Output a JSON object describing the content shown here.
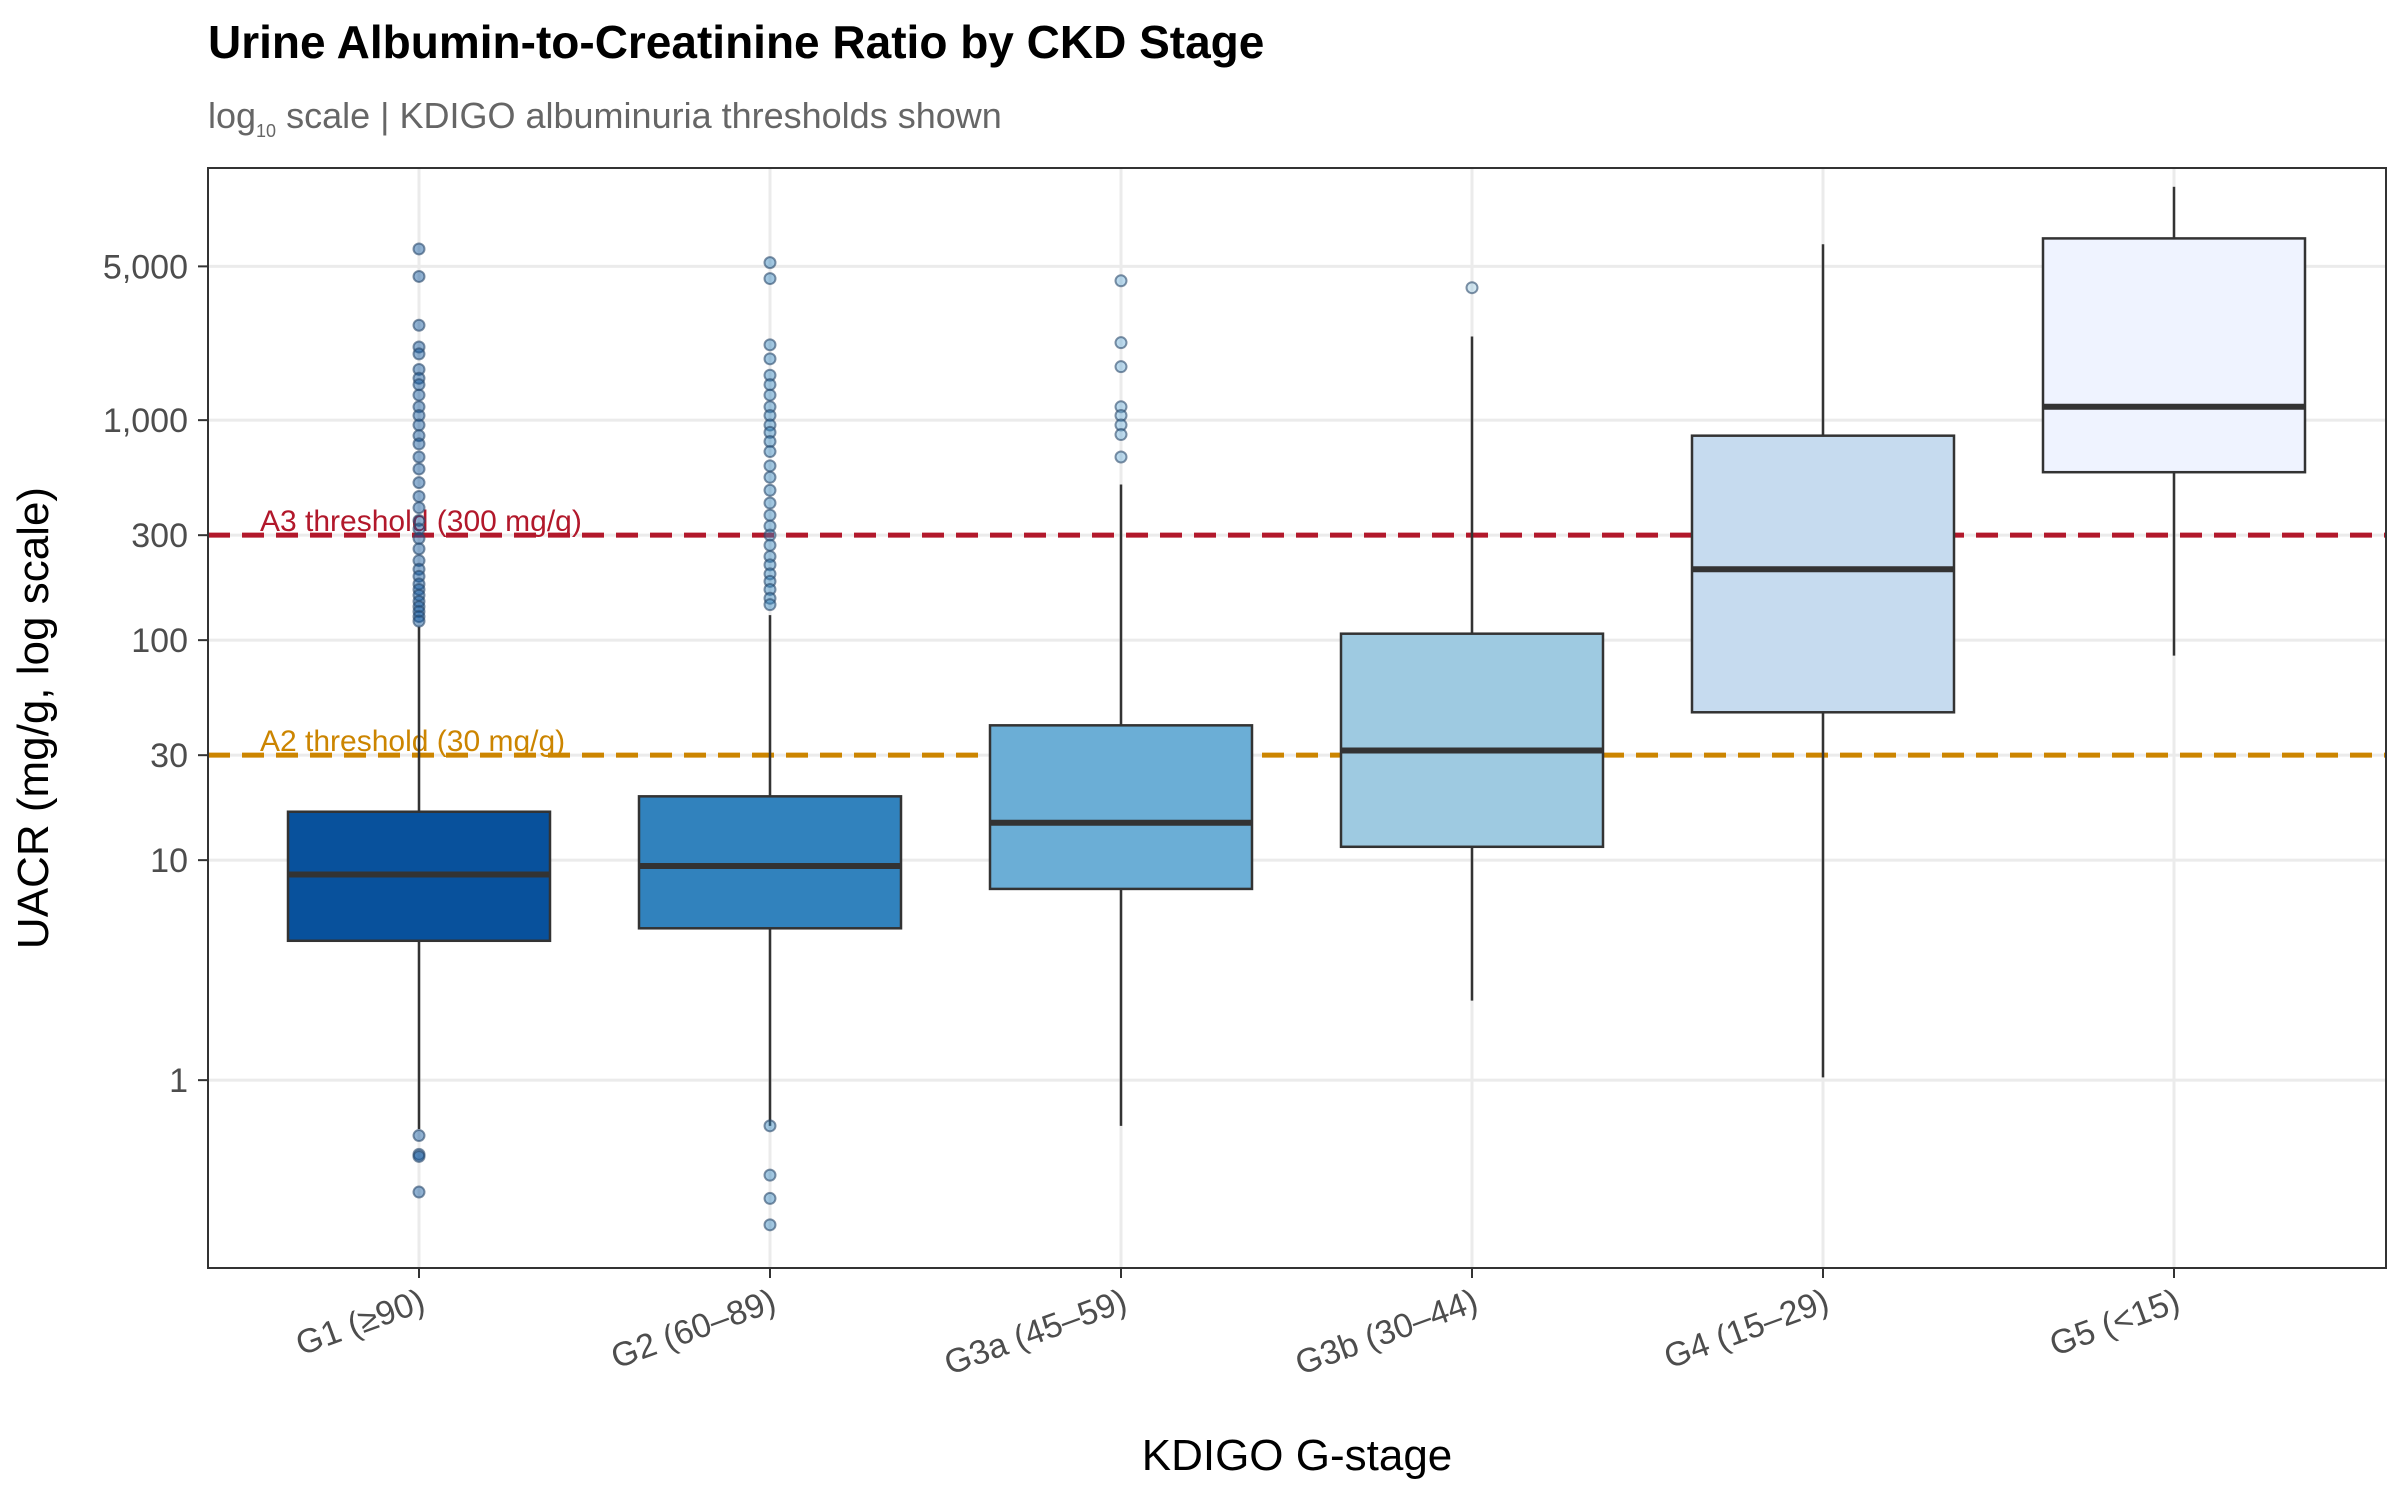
{
  "chart_data": {
    "type": "box",
    "title": "Urine Albumin-to-Creatinine Ratio by CKD Stage",
    "subtitle": {
      "log_word": "log",
      "log_base": "10",
      "rest": " scale | KDIGO albuminuria thresholds shown"
    },
    "xlabel": "KDIGO G-stage",
    "ylabel": "UACR (mg/g, log scale)",
    "y_scale": "log10",
    "ylim": [
      0.14,
      14000
    ],
    "grid": true,
    "y_ticks": [
      {
        "value": 1,
        "label": "1"
      },
      {
        "value": 10,
        "label": "10"
      },
      {
        "value": 30,
        "label": "30"
      },
      {
        "value": 100,
        "label": "100"
      },
      {
        "value": 300,
        "label": "300"
      },
      {
        "value": 1000,
        "label": "1,000"
      },
      {
        "value": 5000,
        "label": "5,000"
      }
    ],
    "thresholds": [
      {
        "value": 300,
        "label": "A3 threshold (300 mg/g)",
        "color": "#B2182B"
      },
      {
        "value": 30,
        "label": "A2 threshold (30 mg/g)",
        "color": "#CC8500"
      }
    ],
    "categories": [
      "G1 (≥90)",
      "G2 (60–89)",
      "G3a (45–59)",
      "G3b (30–44)",
      "G4 (15–29)",
      "G5 (<15)"
    ],
    "boxes": [
      {
        "category": "G1 (≥90)",
        "fill": "#08519C",
        "q1": 4.3,
        "median": 8.6,
        "q3": 16.6,
        "whisker_low": 0.6,
        "whisker_high": 115,
        "outliers": [
          6000,
          4500,
          2700,
          2150,
          2000,
          1700,
          1550,
          1450,
          1300,
          1150,
          1050,
          950,
          850,
          780,
          680,
          600,
          520,
          450,
          400,
          350,
          320,
          290,
          260,
          230,
          210,
          195,
          180,
          170,
          160,
          150,
          142,
          135,
          128,
          122,
          0.56,
          0.46,
          0.45,
          0.31
        ]
      },
      {
        "category": "G2 (60–89)",
        "fill": "#3182BD",
        "q1": 4.9,
        "median": 9.4,
        "q3": 19.5,
        "whisker_low": 0.62,
        "whisker_high": 130,
        "outliers": [
          5200,
          4400,
          2200,
          1900,
          1600,
          1450,
          1300,
          1150,
          1050,
          950,
          880,
          800,
          720,
          620,
          550,
          480,
          420,
          370,
          330,
          300,
          270,
          240,
          220,
          200,
          185,
          170,
          155,
          145,
          0.62,
          0.37,
          0.29,
          0.22
        ]
      },
      {
        "category": "G3a (45–59)",
        "fill": "#6BAED6",
        "q1": 7.4,
        "median": 14.8,
        "q3": 41,
        "whisker_low": 0.62,
        "whisker_high": 510,
        "outliers": [
          4300,
          2250,
          1750,
          1150,
          1050,
          950,
          860,
          680
        ]
      },
      {
        "category": "G3b (30–44)",
        "fill": "#9ECAE1",
        "q1": 11.5,
        "median": 31.5,
        "q3": 107,
        "whisker_low": 2.3,
        "whisker_high": 2400,
        "outliers": [
          4000
        ]
      },
      {
        "category": "G4 (15–29)",
        "fill": "#C6DBEF",
        "q1": 47,
        "median": 210,
        "q3": 850,
        "whisker_low": 1.03,
        "whisker_high": 6300,
        "outliers": []
      },
      {
        "category": "G5 (<15)",
        "fill": "#EFF3FF",
        "q1": 580,
        "median": 1150,
        "q3": 6700,
        "whisker_low": 85,
        "whisker_high": 11500,
        "outliers": []
      }
    ]
  }
}
